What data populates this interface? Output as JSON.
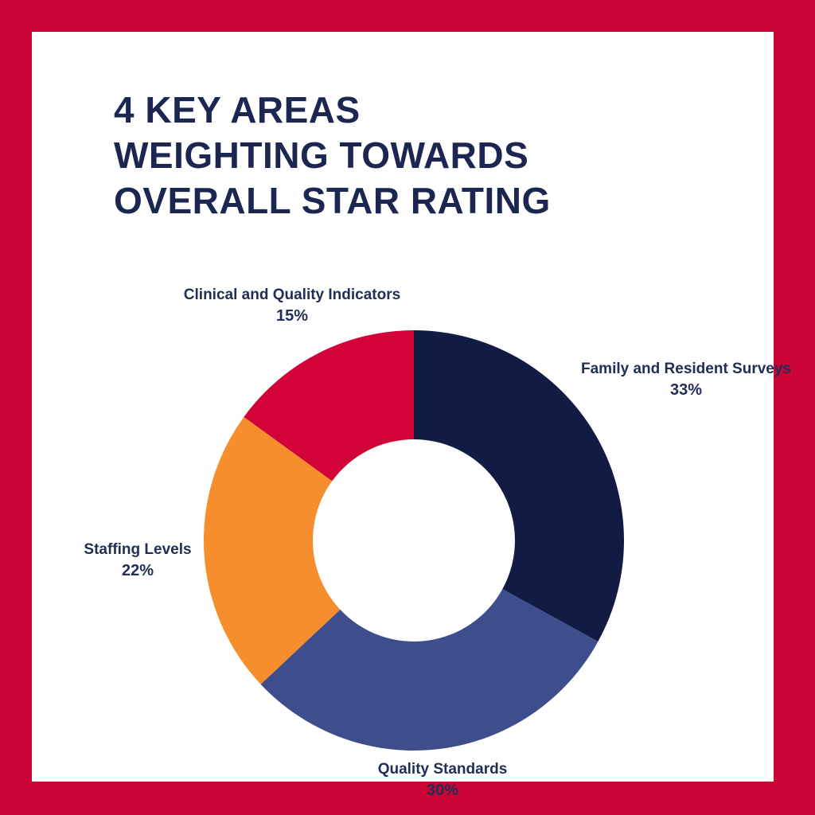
{
  "title": {
    "lines": [
      "4 KEY AREAS",
      "WEIGHTING TOWARDS",
      "OVERALL STAR RATING"
    ]
  },
  "colors": {
    "frame_border": "#ca0434",
    "panel_background": "#ffffff",
    "heading_text": "#1b2750",
    "label_text": "#222e57"
  },
  "chart_data": {
    "type": "pie",
    "variant": "donut",
    "title": "4 KEY AREAS WEIGHTING TOWARDS OVERALL STAR RATING",
    "start_angle_deg": 0,
    "direction": "clockwise",
    "inner_radius_ratio": 0.481,
    "legend_position": "labels-outside-slices",
    "segments": [
      {
        "label": "Family and Resident Surveys",
        "value": 33,
        "display": "33%",
        "color": "#111b44"
      },
      {
        "label": "Quality Standards",
        "value": 30,
        "display": "30%",
        "color": "#3e4e8c"
      },
      {
        "label": "Staffing Levels",
        "value": 22,
        "display": "22%",
        "color": "#f78e2e"
      },
      {
        "label": "Clinical and Quality Indicators",
        "value": 15,
        "display": "15%",
        "color": "#d20336"
      }
    ]
  }
}
